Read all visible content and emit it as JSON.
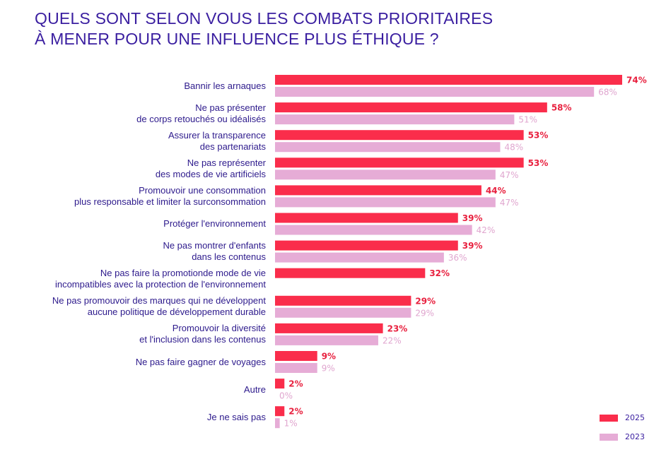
{
  "title": {
    "line1": "QUELS SONT SELON VOUS LES COMBATS PRIORITAIRES",
    "line2": "À MENER POUR UNE INFLUENCE PLUS ÉTHIQUE ?"
  },
  "colors": {
    "s2025": "#fa2d4b",
    "s2023": "#e6acd6",
    "label2025": "#e8213f",
    "label2023": "#e0a6cf",
    "text": "#2d1a8c"
  },
  "legend": [
    {
      "label": "2025"
    },
    {
      "label": "2023"
    }
  ],
  "chart_data": {
    "type": "bar",
    "orientation": "horizontal",
    "title": "QUELS SONT SELON VOUS LES COMBATS PRIORITAIRES À MENER POUR UNE INFLUENCE PLUS ÉTHIQUE ?",
    "categories": [
      [
        "Bannir les arnaques"
      ],
      [
        "Ne pas présenter",
        "de corps retouchés ou idéalisés"
      ],
      [
        "Assurer la transparence",
        "des partenariats"
      ],
      [
        "Ne pas représenter",
        "des modes de vie artificiels"
      ],
      [
        "Promouvoir une consommation",
        "plus responsable et limiter la surconsommation"
      ],
      [
        "Protéger l'environnement"
      ],
      [
        "Ne pas montrer d'enfants",
        "dans les contenus"
      ],
      [
        "Ne pas faire la promotionde mode de vie",
        "incompatibles avec la protection de l'environnement"
      ],
      [
        "Ne pas promouvoir des marques qui ne développent",
        "aucune politique de développement durable"
      ],
      [
        "Promouvoir la diversité",
        "et l'inclusion dans les contenus"
      ],
      [
        "Ne pas faire gagner de voyages"
      ],
      [
        "Autre"
      ],
      [
        "Je ne sais pas"
      ]
    ],
    "series": [
      {
        "name": "2025",
        "values": [
          74,
          58,
          53,
          53,
          44,
          39,
          39,
          32,
          29,
          23,
          9,
          2,
          2
        ],
        "labels": [
          "74%",
          "58%",
          "53%",
          "53%",
          "44%",
          "39%",
          "39%",
          "32%",
          "29%",
          "23%",
          "9%",
          "2%",
          "2%"
        ]
      },
      {
        "name": "2023",
        "values": [
          68,
          51,
          48,
          47,
          47,
          42,
          36,
          null,
          29,
          22,
          9,
          0,
          1
        ],
        "labels": [
          "68%",
          "51%",
          "48%",
          "47%",
          "47%",
          "42%",
          "36%",
          null,
          "29%",
          "22%",
          "9%",
          "0%",
          "1%"
        ]
      }
    ],
    "xlim": [
      0,
      74
    ],
    "grid": false,
    "legend_position": "bottom-right"
  }
}
